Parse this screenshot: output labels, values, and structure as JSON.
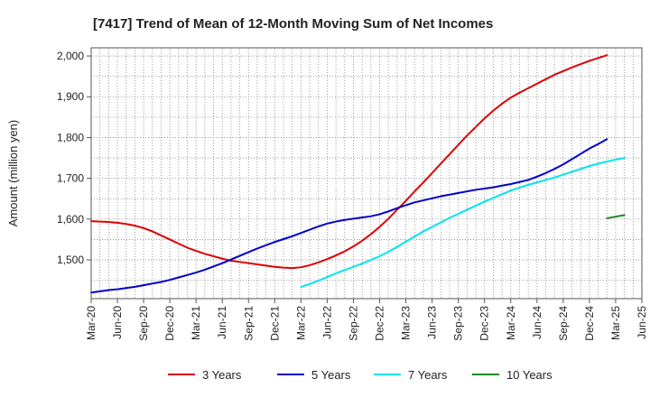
{
  "chart_data": {
    "type": "line",
    "title": "[7417]  Trend of Mean of 12-Month Moving Sum of Net Incomes",
    "xlabel": "",
    "ylabel": "Amount (million yen)",
    "x_ticks": [
      "Mar-20",
      "Jun-20",
      "Sep-20",
      "Dec-20",
      "Mar-21",
      "Jun-21",
      "Sep-21",
      "Dec-21",
      "Mar-22",
      "Jun-22",
      "Sep-22",
      "Dec-22",
      "Mar-23",
      "Jun-23",
      "Sep-23",
      "Dec-23",
      "Mar-24",
      "Jun-24",
      "Sep-24",
      "Dec-24",
      "Mar-25",
      "Jun-25"
    ],
    "y_ticks": [
      "1,500",
      "1,600",
      "1,700",
      "1,800",
      "1,900",
      "2,000"
    ],
    "y_tick_values": [
      1500,
      1600,
      1700,
      1800,
      1900,
      2000
    ],
    "ylim": [
      1405,
      2020
    ],
    "grid": true,
    "legend_position": "bottom",
    "series": [
      {
        "name": "3 Years",
        "color": "#dd0000",
        "start_index": 0,
        "values": [
          1595,
          1594,
          1593,
          1591,
          1588,
          1584,
          1578,
          1570,
          1560,
          1550,
          1540,
          1530,
          1522,
          1515,
          1509,
          1503,
          1498,
          1495,
          1492,
          1489,
          1486,
          1483,
          1481,
          1480,
          1482,
          1487,
          1494,
          1502,
          1511,
          1521,
          1533,
          1547,
          1563,
          1581,
          1601,
          1623,
          1645,
          1668,
          1690,
          1713,
          1736,
          1759,
          1782,
          1805,
          1826,
          1847,
          1866,
          1883,
          1898,
          1910,
          1921,
          1932,
          1943,
          1954,
          1963,
          1972,
          1980,
          1988,
          1995,
          2002
        ]
      },
      {
        "name": "5 Years",
        "color": "#0000cc",
        "start_index": 0,
        "values": [
          1420,
          1423,
          1426,
          1428,
          1431,
          1434,
          1438,
          1442,
          1446,
          1451,
          1457,
          1463,
          1469,
          1476,
          1484,
          1492,
          1501,
          1510,
          1519,
          1528,
          1536,
          1544,
          1551,
          1558,
          1566,
          1574,
          1582,
          1589,
          1594,
          1598,
          1601,
          1604,
          1607,
          1612,
          1619,
          1627,
          1634,
          1641,
          1646,
          1651,
          1656,
          1660,
          1664,
          1668,
          1672,
          1675,
          1678,
          1682,
          1686,
          1691,
          1696,
          1704,
          1713,
          1723,
          1734,
          1747,
          1760,
          1773,
          1784,
          1796
        ]
      },
      {
        "name": "7 Years",
        "color": "#00e5ee",
        "start_index": 24,
        "values": [
          1434,
          1441,
          1449,
          1458,
          1467,
          1475,
          1483,
          1491,
          1500,
          1509,
          1520,
          1532,
          1545,
          1557,
          1570,
          1581,
          1592,
          1603,
          1613,
          1623,
          1633,
          1643,
          1652,
          1661,
          1670,
          1677,
          1684,
          1690,
          1696,
          1702,
          1709,
          1716,
          1723,
          1730,
          1736,
          1741,
          1746,
          1750
        ]
      },
      {
        "name": "10 Years",
        "color": "#228822",
        "start_index": 59,
        "values": [
          1602,
          1606,
          1610
        ]
      }
    ]
  }
}
